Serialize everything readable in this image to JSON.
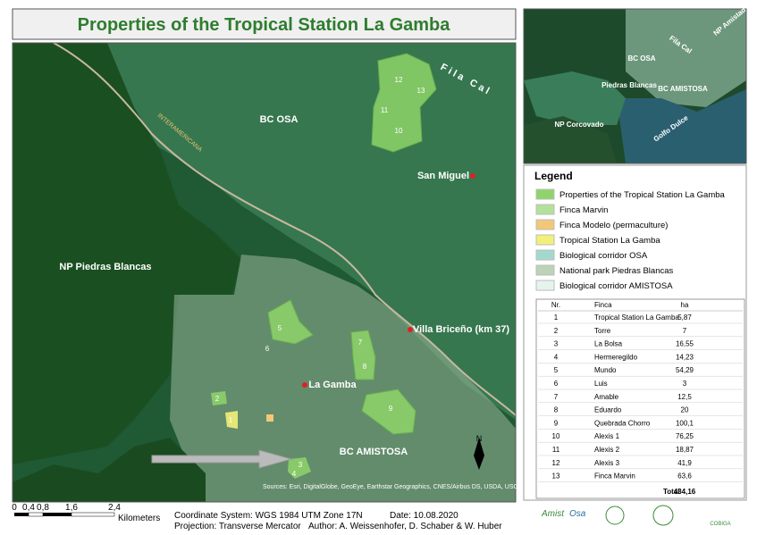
{
  "title": "Properties of the Tropical Station La Gamba",
  "map": {
    "places": [
      "BC OSA",
      "Fila Cal",
      "San Miguel",
      "NP Piedras Blancas",
      "Villa Briceño (km 37)",
      "La Gamba",
      "BC AMISTOSA"
    ],
    "road_label": "INTERAMERICANA",
    "property_labels": [
      "12",
      "13",
      "11",
      "10",
      "5",
      "6",
      "7",
      "8",
      "2",
      "1",
      "9",
      "3",
      "4"
    ],
    "north": "N",
    "attribution": "Sources: Esri, DigitalGlobe, GeoEye, Earthstar Geographics, CNES/Airbus DS, USDA, USGS, AeroGRID, IGN, and the GIS User Community"
  },
  "inset": {
    "labels": [
      "NP Amistad",
      "Fila Cal",
      "BC OSA",
      "NP Piedras Blancas",
      "BC AMISTOSA",
      "NP Corcovado",
      "Golfo Dulce"
    ]
  },
  "legend": {
    "title": "Legend",
    "items": [
      {
        "label": "Properties of the Tropical Station La Gamba",
        "color": "#8fd46a"
      },
      {
        "label": "Finca Marvin",
        "color": "#b4e19a"
      },
      {
        "label": "Finca Modelo (permaculture)",
        "color": "#f2c878"
      },
      {
        "label": "Tropical Station La Gamba",
        "color": "#f3f07a"
      },
      {
        "label": "Biological corridor OSA",
        "color": "#a3d9cc"
      },
      {
        "label": "National park Piedras Blancas",
        "color": "#bcd3b6"
      },
      {
        "label": "Biological corridor AMISTOSA",
        "color": "#e6f4ee"
      }
    ]
  },
  "table": {
    "header": [
      "Nr.",
      "Finca",
      "ha"
    ],
    "rows": [
      [
        "1",
        "Tropical Station La Gamba",
        "5,87"
      ],
      [
        "2",
        "Torre",
        "7"
      ],
      [
        "3",
        "La Bolsa",
        "16,55"
      ],
      [
        "4",
        "Hermeregildo",
        "14,23"
      ],
      [
        "5",
        "Mundo",
        "54,29"
      ],
      [
        "6",
        "Luis",
        "3"
      ],
      [
        "7",
        "Amable",
        "12,5"
      ],
      [
        "8",
        "Eduardo",
        "20"
      ],
      [
        "9",
        "Quebrada Chorro",
        "100,1"
      ],
      [
        "10",
        "Alexis 1",
        "76,25"
      ],
      [
        "11",
        "Alexis 2",
        "18,87"
      ],
      [
        "12",
        "Alexis 3",
        "41,9"
      ],
      [
        "13",
        "Finca Marvin",
        "63,6"
      ]
    ],
    "total": {
      "label": "Total",
      "value": "434,16"
    }
  },
  "scale": {
    "ticks": [
      "0",
      "0,4",
      "0,8",
      "1,6",
      "2,4"
    ],
    "unit": "Kilometers"
  },
  "footer": {
    "coordinate_system": "Coordinate System: WGS 1984 UTM Zone 17N",
    "date": "Date: 10.08.2020",
    "projection": "Projection: Transverse Mercator",
    "author": "Author: A. Weissenhofer, D. Schaber & W. Huber"
  },
  "logos": [
    "Amist",
    "Osa",
    "COBIGA"
  ]
}
